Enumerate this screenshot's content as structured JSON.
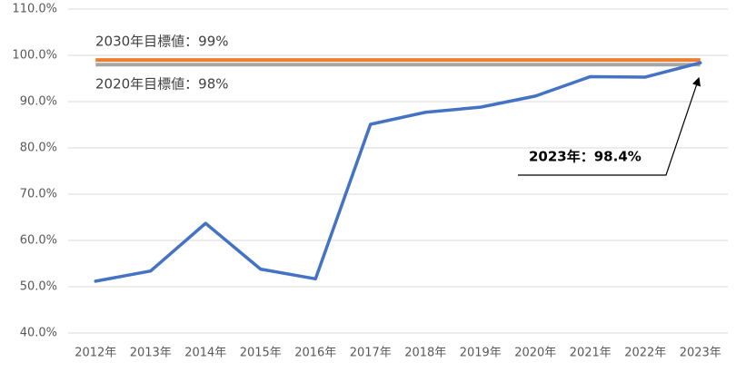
{
  "chart_data": {
    "type": "line",
    "categories": [
      "2012年",
      "2013年",
      "2014年",
      "2015年",
      "2016年",
      "2017年",
      "2018年",
      "2019年",
      "2020年",
      "2021年",
      "2022年",
      "2023年"
    ],
    "series": [
      {
        "color": "#4472c4",
        "values": [
          51.2,
          53.4,
          63.7,
          53.8,
          51.7,
          85.1,
          87.7,
          88.8,
          91.2,
          95.4,
          95.3,
          98.4
        ]
      }
    ],
    "ylim": [
      40,
      110
    ],
    "yticks": [
      {
        "value": 40,
        "label": "40.0%"
      },
      {
        "value": 50,
        "label": "50.0%"
      },
      {
        "value": 60,
        "label": "60.0%"
      },
      {
        "value": 70,
        "label": "70.0%"
      },
      {
        "value": 80,
        "label": "80.0%"
      },
      {
        "value": 90,
        "label": "90.0%"
      },
      {
        "value": 100,
        "label": "100.0%"
      },
      {
        "value": 110,
        "label": "110.0%"
      }
    ],
    "grid": true,
    "reference_lines": [
      {
        "label": "2030年目標値：99%",
        "value": 99,
        "color": "#ed7d31"
      },
      {
        "label": "2020年目標値：98%",
        "value": 98,
        "color": "#a5a5a5"
      }
    ],
    "annotation": {
      "text": "2023年：98.4%",
      "value": 98.4
    }
  }
}
